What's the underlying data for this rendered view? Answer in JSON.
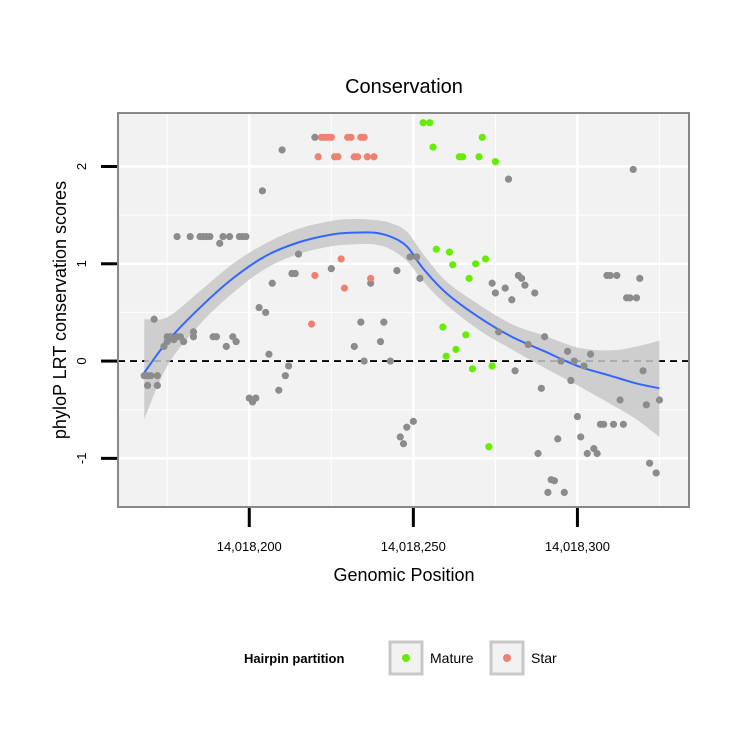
{
  "chart_data": {
    "type": "scatter",
    "title": "Conservation",
    "xlabel": "Genomic Position",
    "ylabel": "phyloP LRT conservation scores",
    "xlim": [
      14018160,
      14018334
    ],
    "ylim": [
      -1.5,
      2.55
    ],
    "x_ticks": [
      14018200,
      14018250,
      14018300
    ],
    "x_tick_labels": [
      "14,018,200",
      "14,018,250",
      "14,018,300"
    ],
    "x_minor_ticks": [
      14018175,
      14018225,
      14018275,
      14018325
    ],
    "y_ticks": [
      -1,
      0,
      1,
      2
    ],
    "y_tick_labels": [
      "-1",
      "0",
      "1",
      "2"
    ],
    "y_minor_ticks": [
      -0.5,
      0.5,
      1.5
    ],
    "reference_line": {
      "y": 0,
      "style": "dashed"
    },
    "colors": {
      "background": "#f2f2f2",
      "grid": "#ffffff",
      "panel_border": "#888888",
      "other": "#8c8c8c",
      "Mature": "#66ee00",
      "Star": "#f08070",
      "smooth": "#3366ff",
      "band": "#c8c8c8"
    },
    "legend": {
      "title": "Hairpin partition",
      "position": "bottom",
      "entries": [
        {
          "label": "Mature",
          "color": "#66ee00"
        },
        {
          "label": "Star",
          "color": "#f08070"
        }
      ]
    },
    "series": [
      {
        "name": "Other",
        "color": "#8c8c8c",
        "points": [
          [
            14018168,
            -0.15
          ],
          [
            14018169,
            -0.25
          ],
          [
            14018169,
            -0.15
          ],
          [
            14018170,
            -0.15
          ],
          [
            14018171,
            0.43
          ],
          [
            14018172,
            -0.15
          ],
          [
            14018172,
            -0.25
          ],
          [
            14018174,
            0.15
          ],
          [
            14018175,
            0.2
          ],
          [
            14018175,
            0.25
          ],
          [
            14018176,
            0.25
          ],
          [
            14018177,
            0.22
          ],
          [
            14018178,
            1.28
          ],
          [
            14018178,
            0.25
          ],
          [
            14018179,
            0.25
          ],
          [
            14018180,
            0.2
          ],
          [
            14018182,
            1.28
          ],
          [
            14018183,
            0.3
          ],
          [
            14018183,
            0.25
          ],
          [
            14018185,
            1.28
          ],
          [
            14018186,
            1.28
          ],
          [
            14018187,
            1.28
          ],
          [
            14018188,
            1.28
          ],
          [
            14018189,
            0.25
          ],
          [
            14018190,
            0.25
          ],
          [
            14018191,
            1.21
          ],
          [
            14018192,
            1.28
          ],
          [
            14018193,
            0.15
          ],
          [
            14018194,
            1.28
          ],
          [
            14018195,
            0.25
          ],
          [
            14018196,
            0.2
          ],
          [
            14018197,
            1.28
          ],
          [
            14018198,
            1.28
          ],
          [
            14018199,
            1.28
          ],
          [
            14018200,
            -0.38
          ],
          [
            14018201,
            -0.42
          ],
          [
            14018202,
            -0.38
          ],
          [
            14018203,
            0.55
          ],
          [
            14018204,
            1.75
          ],
          [
            14018205,
            0.5
          ],
          [
            14018206,
            0.07
          ],
          [
            14018207,
            0.8
          ],
          [
            14018209,
            -0.3
          ],
          [
            14018210,
            2.17
          ],
          [
            14018211,
            -0.15
          ],
          [
            14018212,
            -0.05
          ],
          [
            14018213,
            0.9
          ],
          [
            14018214,
            0.9
          ],
          [
            14018215,
            1.1
          ],
          [
            14018220,
            2.3
          ],
          [
            14018225,
            0.95
          ],
          [
            14018232,
            0.15
          ],
          [
            14018234,
            0.4
          ],
          [
            14018235,
            0.0
          ],
          [
            14018237,
            0.8
          ],
          [
            14018240,
            0.2
          ],
          [
            14018241,
            0.4
          ],
          [
            14018243,
            0.0
          ],
          [
            14018245,
            0.93
          ],
          [
            14018246,
            -0.78
          ],
          [
            14018247,
            -0.85
          ],
          [
            14018248,
            -0.68
          ],
          [
            14018249,
            1.07
          ],
          [
            14018250,
            -0.62
          ],
          [
            14018251,
            1.07
          ],
          [
            14018252,
            0.85
          ],
          [
            14018274,
            0.8
          ],
          [
            14018275,
            0.7
          ],
          [
            14018276,
            0.3
          ],
          [
            14018278,
            0.75
          ],
          [
            14018279,
            1.87
          ],
          [
            14018280,
            0.63
          ],
          [
            14018281,
            -0.1
          ],
          [
            14018282,
            0.88
          ],
          [
            14018283,
            0.85
          ],
          [
            14018284,
            0.78
          ],
          [
            14018285,
            0.17
          ],
          [
            14018287,
            0.7
          ],
          [
            14018288,
            -0.95
          ],
          [
            14018289,
            -0.28
          ],
          [
            14018290,
            0.25
          ],
          [
            14018291,
            -1.35
          ],
          [
            14018292,
            -1.22
          ],
          [
            14018293,
            -1.23
          ],
          [
            14018294,
            -0.8
          ],
          [
            14018295,
            0.0
          ],
          [
            14018296,
            -1.35
          ],
          [
            14018297,
            0.1
          ],
          [
            14018298,
            -0.2
          ],
          [
            14018299,
            0.0
          ],
          [
            14018300,
            -0.57
          ],
          [
            14018301,
            -0.78
          ],
          [
            14018302,
            -0.05
          ],
          [
            14018303,
            -0.95
          ],
          [
            14018304,
            0.07
          ],
          [
            14018305,
            -0.9
          ],
          [
            14018306,
            -0.95
          ],
          [
            14018307,
            -0.65
          ],
          [
            14018308,
            -0.65
          ],
          [
            14018309,
            0.88
          ],
          [
            14018310,
            0.88
          ],
          [
            14018311,
            -0.65
          ],
          [
            14018312,
            0.88
          ],
          [
            14018313,
            -0.4
          ],
          [
            14018314,
            -0.65
          ],
          [
            14018315,
            0.65
          ],
          [
            14018316,
            0.65
          ],
          [
            14018317,
            1.97
          ],
          [
            14018318,
            0.65
          ],
          [
            14018319,
            0.85
          ],
          [
            14018320,
            -0.1
          ],
          [
            14018321,
            -0.45
          ],
          [
            14018322,
            -1.05
          ],
          [
            14018324,
            -1.15
          ],
          [
            14018325,
            -0.4
          ]
        ]
      },
      {
        "name": "Mature",
        "color": "#66ee00",
        "points": [
          [
            14018253,
            2.45
          ],
          [
            14018255,
            2.45
          ],
          [
            14018256,
            2.2
          ],
          [
            14018257,
            1.15
          ],
          [
            14018259,
            0.35
          ],
          [
            14018260,
            0.05
          ],
          [
            14018261,
            1.12
          ],
          [
            14018262,
            0.99
          ],
          [
            14018263,
            0.12
          ],
          [
            14018264,
            2.1
          ],
          [
            14018265,
            2.1
          ],
          [
            14018266,
            0.27
          ],
          [
            14018267,
            0.85
          ],
          [
            14018268,
            -0.08
          ],
          [
            14018269,
            1.0
          ],
          [
            14018270,
            2.1
          ],
          [
            14018271,
            2.3
          ],
          [
            14018272,
            1.05
          ],
          [
            14018273,
            -0.88
          ],
          [
            14018274,
            -0.05
          ],
          [
            14018275,
            2.05
          ]
        ]
      },
      {
        "name": "Star",
        "color": "#f08070",
        "points": [
          [
            14018219,
            0.38
          ],
          [
            14018220,
            0.88
          ],
          [
            14018221,
            2.1
          ],
          [
            14018222,
            2.3
          ],
          [
            14018223,
            2.3
          ],
          [
            14018224,
            2.3
          ],
          [
            14018225,
            2.3
          ],
          [
            14018226,
            2.1
          ],
          [
            14018227,
            2.1
          ],
          [
            14018228,
            1.05
          ],
          [
            14018229,
            0.75
          ],
          [
            14018230,
            2.3
          ],
          [
            14018231,
            2.3
          ],
          [
            14018232,
            2.1
          ],
          [
            14018233,
            2.1
          ],
          [
            14018234,
            2.3
          ],
          [
            14018235,
            2.3
          ],
          [
            14018236,
            2.1
          ],
          [
            14018237,
            0.85
          ],
          [
            14018238,
            2.1
          ]
        ]
      }
    ],
    "smooth": {
      "method": "loess",
      "x": [
        14018168,
        14018175,
        14018185,
        14018195,
        14018205,
        14018215,
        14018225,
        14018232,
        14018238,
        14018243,
        14018248,
        14018253,
        14018260,
        14018270,
        14018280,
        14018290,
        14018300,
        14018310,
        14018318,
        14018325
      ],
      "y": [
        -0.12,
        0.2,
        0.55,
        0.85,
        1.08,
        1.22,
        1.3,
        1.32,
        1.32,
        1.28,
        1.18,
        0.95,
        0.7,
        0.45,
        0.25,
        0.1,
        -0.05,
        -0.15,
        -0.23,
        -0.28
      ],
      "lower": [
        -0.6,
        -0.05,
        0.38,
        0.7,
        0.95,
        1.1,
        1.18,
        1.2,
        1.2,
        1.15,
        1.03,
        0.82,
        0.58,
        0.32,
        0.12,
        -0.07,
        -0.25,
        -0.44,
        -0.6,
        -0.78
      ],
      "upper": [
        0.43,
        0.45,
        0.72,
        1.0,
        1.21,
        1.36,
        1.44,
        1.46,
        1.45,
        1.42,
        1.33,
        1.1,
        0.82,
        0.58,
        0.38,
        0.26,
        0.14,
        0.11,
        0.15,
        0.21
      ]
    }
  }
}
